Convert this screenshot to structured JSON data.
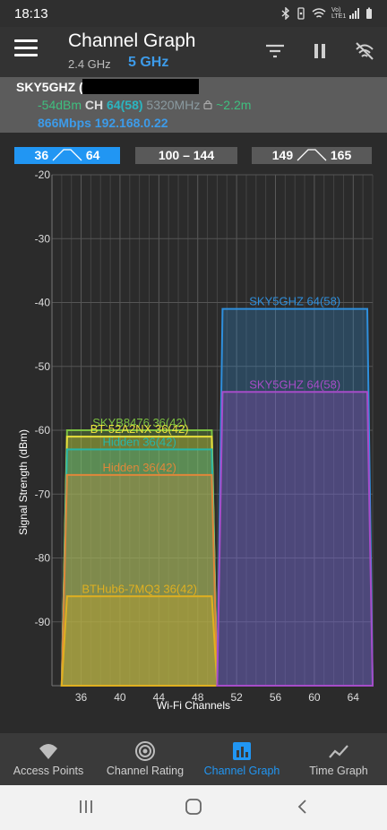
{
  "status_bar": {
    "time": "18:13",
    "icons": [
      "bluetooth-icon",
      "vibrate-icon",
      "wifi-icon",
      "volte-icon",
      "signal-icon",
      "battery-icon"
    ],
    "volte_text": "Vo) LTE1"
  },
  "app_bar": {
    "title": "Channel Graph",
    "band_24": "2.4 GHz",
    "band_5": "5 GHz",
    "band_5_color": "#3d9be9"
  },
  "connection": {
    "ssid": "SKY5GHZ (",
    "signal": "-54dBm",
    "ch_label": "CH",
    "channel": "64(58)",
    "frequency": "5320MHz",
    "distance": "~2.2m",
    "link_info": "866Mbps 192.168.0.22"
  },
  "channel_ranges": [
    {
      "start": "36",
      "end": "64",
      "active": true
    },
    {
      "label": "100 – 144",
      "active": false
    },
    {
      "start": "149",
      "end": "165",
      "active": false
    }
  ],
  "chart_data": {
    "type": "area",
    "xlabel": "Wi-Fi Channels",
    "ylabel": "Signal Strength (dBm)",
    "xlim": [
      33,
      66
    ],
    "ylim": [
      -100,
      -20
    ],
    "y_ticks": [
      -20,
      -30,
      -40,
      -50,
      -60,
      -70,
      -80,
      -90
    ],
    "x_ticks": [
      36,
      40,
      44,
      48,
      52,
      56,
      60,
      64
    ],
    "grid": true,
    "series": [
      {
        "name": "SKYB8476 36(42)",
        "channel_low": 36,
        "channel_high": 48,
        "dbm": -60,
        "color": "#7cc242"
      },
      {
        "name": "BT-52A2NX 36(42)",
        "channel_low": 36,
        "channel_high": 48,
        "dbm": -61,
        "color": "#e8e03c"
      },
      {
        "name": "Hidden 36(42)",
        "channel_low": 36,
        "channel_high": 48,
        "dbm": -63,
        "color": "#28b6a8"
      },
      {
        "name": "Hidden 36(42)",
        "channel_low": 36,
        "channel_high": 48,
        "dbm": -67,
        "color": "#e0873a"
      },
      {
        "name": "BTHub6-7MQ3 36(42)",
        "channel_low": 36,
        "channel_high": 48,
        "dbm": -86,
        "color": "#e0b020"
      },
      {
        "name": "SKY5GHZ 64(58)",
        "channel_low": 52,
        "channel_high": 64,
        "dbm": -41,
        "color": "#2f8fdc"
      },
      {
        "name": "SKY5GHZ 64(58)",
        "channel_low": 52,
        "channel_high": 64,
        "dbm": -54,
        "color": "#a64cc8"
      }
    ]
  },
  "bottom_nav": [
    {
      "label": "Access Points",
      "icon": "access-points-icon",
      "active": false
    },
    {
      "label": "Channel Rating",
      "icon": "channel-rating-icon",
      "active": false
    },
    {
      "label": "Channel Graph",
      "icon": "channel-graph-icon",
      "active": true
    },
    {
      "label": "Time Graph",
      "icon": "time-graph-icon",
      "active": false
    }
  ],
  "system_nav": [
    "recents-icon",
    "home-icon",
    "back-icon"
  ]
}
